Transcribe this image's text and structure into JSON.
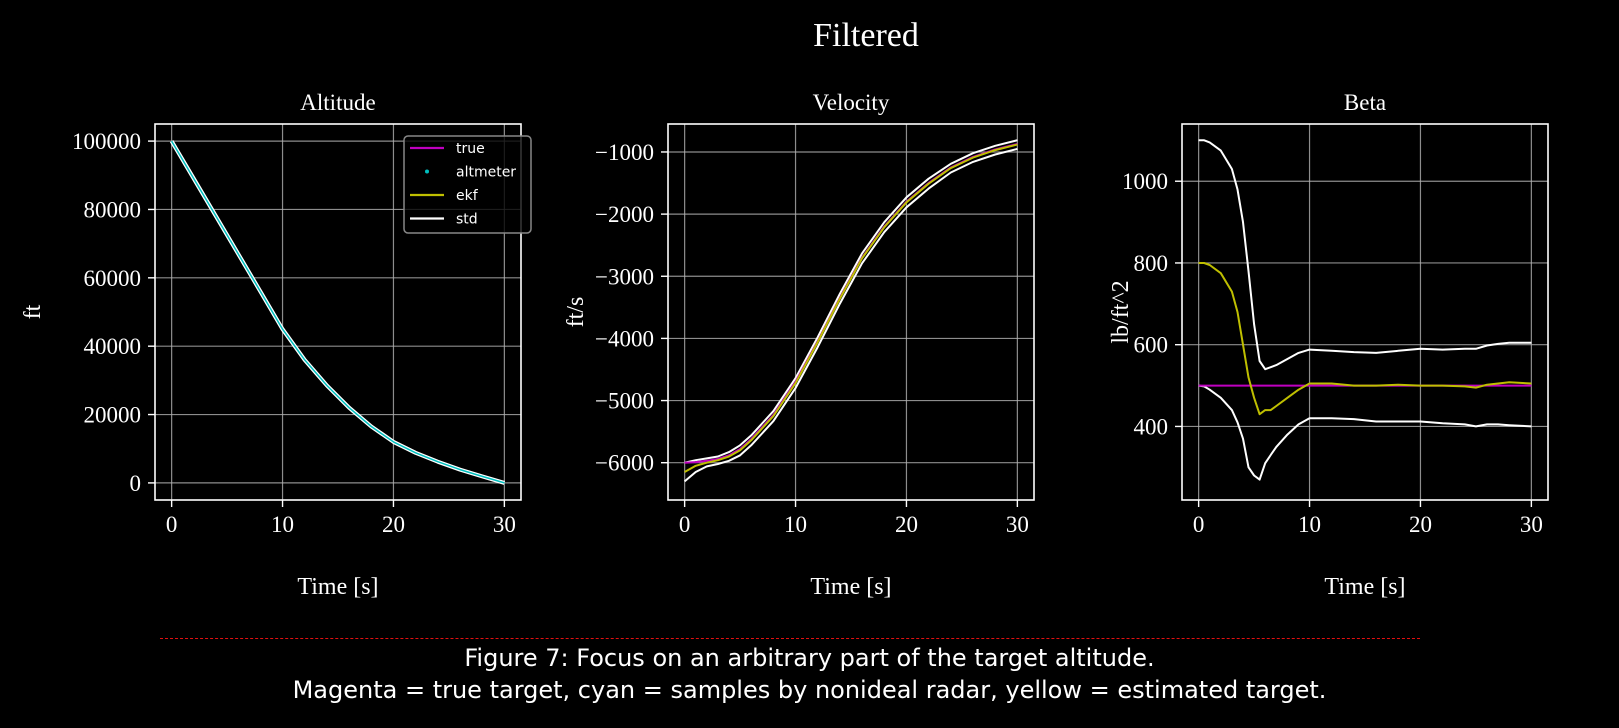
{
  "figure": {
    "suptitle": "Filtered",
    "caption_line1": "Figure 7: Focus on an arbitrary part of the target altitude.",
    "caption_line2": "Magenta = true target, cyan = samples by nonideal radar, yellow = estimated target."
  },
  "colors": {
    "true": "#c000c0",
    "altmeter": "#00bfbf",
    "ekf": "#bfbf00",
    "std": "#ffffff",
    "background": "#000000",
    "grid": "#b0b0b0",
    "separator": "#e01010"
  },
  "legend": {
    "entries": [
      {
        "label": "true",
        "kind": "line",
        "color": "#c000c0"
      },
      {
        "label": "altmeter",
        "kind": "marker",
        "color": "#00bfbf"
      },
      {
        "label": "ekf",
        "kind": "line",
        "color": "#bfbf00"
      },
      {
        "label": "std",
        "kind": "line",
        "color": "#ffffff"
      }
    ]
  },
  "chart_data": [
    {
      "type": "line",
      "title": "Altitude",
      "xlabel": "Time [s]",
      "ylabel": "ft",
      "xlim": [
        -1.5,
        31.5
      ],
      "ylim": [
        -5000,
        105000
      ],
      "xticks": [
        0,
        10,
        20,
        30
      ],
      "yticks": [
        0,
        20000,
        40000,
        60000,
        80000,
        100000
      ],
      "ytick_labels": [
        "0",
        "20000",
        "40000",
        "60000",
        "80000",
        "100000"
      ],
      "grid": true,
      "legend_position": "upper right",
      "x": [
        0,
        2,
        4,
        6,
        8,
        10,
        12,
        14,
        16,
        18,
        20,
        22,
        24,
        26,
        28,
        30
      ],
      "series": [
        {
          "name": "true",
          "values": [
            100000,
            89000,
            78000,
            67000,
            56000,
            45000,
            36000,
            28500,
            22000,
            16500,
            12000,
            8800,
            6200,
            3900,
            1900,
            0
          ]
        },
        {
          "name": "altmeter",
          "values": [
            100000,
            89000,
            78000,
            67000,
            56000,
            45000,
            36000,
            28500,
            22000,
            16500,
            12000,
            8800,
            6200,
            3900,
            1900,
            0
          ]
        },
        {
          "name": "ekf",
          "values": [
            100000,
            89000,
            78000,
            67000,
            56000,
            45000,
            36000,
            28500,
            22000,
            16500,
            12000,
            8800,
            6200,
            3900,
            1900,
            0
          ]
        },
        {
          "name": "std_upper",
          "values": [
            100000,
            89000,
            78000,
            67000,
            56000,
            45000,
            36000,
            28500,
            22000,
            16500,
            12000,
            8800,
            6200,
            3900,
            1900,
            0
          ]
        },
        {
          "name": "std_lower",
          "values": [
            100000,
            89000,
            78000,
            67000,
            56000,
            45000,
            36000,
            28500,
            22000,
            16500,
            12000,
            8800,
            6200,
            3900,
            1900,
            0
          ]
        }
      ]
    },
    {
      "type": "line",
      "title": "Velocity",
      "xlabel": "Time [s]",
      "ylabel": "ft/s",
      "xlim": [
        -1.5,
        31.5
      ],
      "ylim": [
        -6600,
        -550
      ],
      "xticks": [
        0,
        10,
        20,
        30
      ],
      "yticks": [
        -6000,
        -5000,
        -4000,
        -3000,
        -2000,
        -1000
      ],
      "ytick_labels": [
        "−6000",
        "−5000",
        "−4000",
        "−3000",
        "−2000",
        "−1000"
      ],
      "grid": true,
      "x": [
        0,
        1,
        2,
        3,
        4,
        5,
        6,
        8,
        10,
        12,
        14,
        16,
        18,
        20,
        22,
        24,
        26,
        28,
        30
      ],
      "series": [
        {
          "name": "true",
          "values": [
            -6000,
            -5990,
            -5970,
            -5940,
            -5880,
            -5780,
            -5620,
            -5230,
            -4700,
            -4050,
            -3350,
            -2700,
            -2200,
            -1800,
            -1500,
            -1250,
            -1080,
            -960,
            -870
          ]
        },
        {
          "name": "ekf",
          "values": [
            -6150,
            -6050,
            -6000,
            -5960,
            -5900,
            -5800,
            -5640,
            -5250,
            -4720,
            -4060,
            -3360,
            -2710,
            -2210,
            -1810,
            -1510,
            -1260,
            -1090,
            -970,
            -880
          ]
        },
        {
          "name": "std_upper",
          "values": [
            -6000,
            -5960,
            -5930,
            -5900,
            -5830,
            -5720,
            -5560,
            -5170,
            -4640,
            -3980,
            -3280,
            -2630,
            -2130,
            -1730,
            -1430,
            -1190,
            -1020,
            -900,
            -810
          ]
        },
        {
          "name": "std_lower",
          "values": [
            -6300,
            -6150,
            -6060,
            -6020,
            -5970,
            -5880,
            -5720,
            -5330,
            -4800,
            -4140,
            -3440,
            -2790,
            -2290,
            -1890,
            -1590,
            -1330,
            -1160,
            -1040,
            -950
          ]
        }
      ]
    },
    {
      "type": "line",
      "title": "Beta",
      "xlabel": "Time [s]",
      "ylabel": "lb/ft^2",
      "xlim": [
        -1.5,
        31.5
      ],
      "ylim": [
        220,
        1140
      ],
      "xticks": [
        0,
        10,
        20,
        30
      ],
      "yticks": [
        400,
        600,
        800,
        1000
      ],
      "ytick_labels": [
        "400",
        "600",
        "800",
        "1000"
      ],
      "grid": true,
      "x": [
        0,
        0.5,
        1,
        2,
        3,
        3.5,
        4,
        4.5,
        5,
        5.5,
        6,
        6.5,
        7,
        8,
        9,
        10,
        12,
        14,
        16,
        18,
        20,
        22,
        24,
        25,
        26,
        27,
        28,
        30
      ],
      "series": [
        {
          "name": "true",
          "values": [
            500,
            500,
            500,
            500,
            500,
            500,
            500,
            500,
            500,
            500,
            500,
            500,
            500,
            500,
            500,
            500,
            500,
            500,
            500,
            500,
            500,
            500,
            500,
            500,
            500,
            500,
            500,
            500
          ]
        },
        {
          "name": "ekf",
          "values": [
            800,
            800,
            795,
            775,
            730,
            680,
            600,
            520,
            470,
            430,
            440,
            440,
            450,
            470,
            490,
            505,
            505,
            500,
            500,
            502,
            500,
            500,
            498,
            495,
            502,
            505,
            508,
            505
          ]
        },
        {
          "name": "std_upper",
          "values": [
            1100,
            1100,
            1095,
            1075,
            1030,
            980,
            900,
            780,
            650,
            560,
            540,
            545,
            550,
            565,
            580,
            588,
            585,
            582,
            580,
            585,
            590,
            588,
            590,
            590,
            598,
            602,
            605,
            605
          ]
        },
        {
          "name": "std_lower",
          "values": [
            500,
            498,
            490,
            470,
            440,
            410,
            370,
            300,
            280,
            270,
            310,
            330,
            350,
            380,
            405,
            420,
            420,
            418,
            412,
            412,
            412,
            408,
            405,
            400,
            405,
            405,
            403,
            400
          ]
        }
      ]
    }
  ]
}
